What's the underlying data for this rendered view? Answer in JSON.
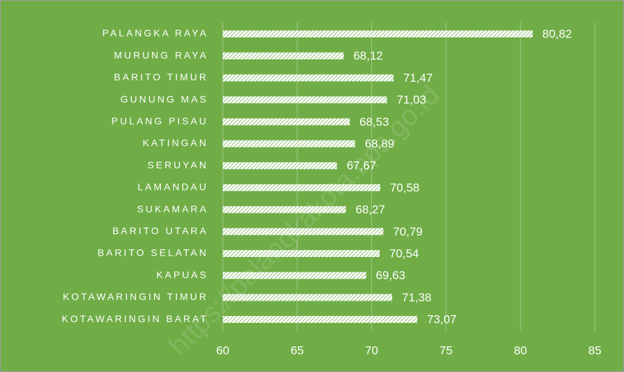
{
  "chart_data": {
    "type": "barh",
    "categories": [
      "PALANGKA RAYA",
      "MURUNG RAYA",
      "BARITO TIMUR",
      "GUNUNG MAS",
      "PULANG PISAU",
      "KATINGAN",
      "SERUYAN",
      "LAMANDAU",
      "SUKAMARA",
      "BARITO UTARA",
      "BARITO SELATAN",
      "KAPUAS",
      "KOTAWARINGIN TIMUR",
      "KOTAWARINGIN BARAT"
    ],
    "values": [
      80.82,
      68.12,
      71.47,
      71.03,
      68.53,
      68.89,
      67.67,
      70.58,
      68.27,
      70.79,
      70.54,
      69.63,
      71.38,
      73.07
    ],
    "value_labels": [
      "80,82",
      "68,12",
      "71,47",
      "71,03",
      "68,53",
      "68,89",
      "67,67",
      "70,58",
      "68,27",
      "70,79",
      "70,54",
      "69,63",
      "71,38",
      "73,07"
    ],
    "color": "#ffffff",
    "background": "#70ad47",
    "xlim": [
      60,
      85
    ],
    "xticks": [
      60,
      65,
      70,
      75,
      80,
      85
    ],
    "grid": true,
    "watermark": "https://palangkakota.bps.go.id"
  }
}
